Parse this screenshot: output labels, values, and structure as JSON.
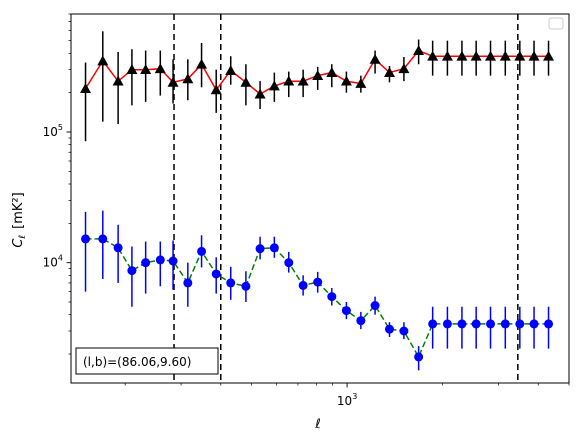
{
  "chart_data": {
    "type": "scatter",
    "xlabel": "ℓ",
    "ylabel": "C",
    "ylabel_subscript": "ℓ",
    "ylabel_unit": "[mK²]",
    "xscale": "log",
    "yscale": "log",
    "xlim": [
      135,
      5000
    ],
    "ylim": [
      1200,
      800000
    ],
    "x_tick_labels": [
      {
        "value": 1000,
        "base": "10",
        "exp": "3"
      }
    ],
    "y_tick_labels": [
      {
        "value": 10000,
        "base": "10",
        "exp": "4"
      },
      {
        "value": 100000,
        "base": "10",
        "exp": "5"
      }
    ],
    "vlines": [
      285,
      400,
      3450
    ],
    "annotation": {
      "label": "(l, b)=(86.06,9.60)",
      "text": "(l,b)=(86.06,9.60)"
    },
    "legend": {
      "placement": "top-right",
      "entries": []
    },
    "series": [
      {
        "marker": "triangle",
        "marker_color": "#000000",
        "line_color": "#ff0000",
        "line_style": "solid",
        "errorbar_color": "#000000",
        "x": [
          150,
          170,
          190,
          210,
          232,
          258,
          283,
          315,
          348,
          387,
          430,
          480,
          532,
          590,
          655,
          727,
          808,
          895,
          995,
          1105,
          1225,
          1360,
          1510,
          1680,
          1860,
          2070,
          2300,
          2550,
          2830,
          3150,
          3500,
          3880,
          4310
        ],
        "y": [
          215000,
          350000,
          245000,
          300000,
          300000,
          305000,
          240000,
          255000,
          330000,
          210000,
          295000,
          240000,
          195000,
          225000,
          245000,
          245000,
          270000,
          285000,
          245000,
          235000,
          360000,
          285000,
          305000,
          420000,
          380000,
          380000,
          380000,
          380000,
          380000,
          380000,
          380000,
          380000,
          380000
        ],
        "yerr_low": [
          85000,
          120000,
          115000,
          160000,
          170000,
          190000,
          165000,
          175000,
          220000,
          140000,
          230000,
          160000,
          150000,
          170000,
          185000,
          185000,
          210000,
          220000,
          200000,
          200000,
          280000,
          240000,
          245000,
          330000,
          270000,
          270000,
          270000,
          270000,
          270000,
          270000,
          270000,
          270000,
          270000
        ],
        "yerr_high": [
          340000,
          590000,
          410000,
          430000,
          420000,
          420000,
          360000,
          360000,
          480000,
          300000,
          380000,
          330000,
          245000,
          285000,
          290000,
          300000,
          315000,
          330000,
          290000,
          270000,
          420000,
          320000,
          375000,
          510000,
          500000,
          500000,
          500000,
          500000,
          500000,
          500000,
          500000,
          500000,
          500000
        ]
      },
      {
        "marker": "circle",
        "marker_color": "#0000ff",
        "line_color": "#008000",
        "line_style": "dashed",
        "errorbar_color": "#0000ff",
        "x": [
          150,
          170,
          190,
          210,
          232,
          258,
          283,
          315,
          348,
          387,
          430,
          480,
          532,
          590,
          655,
          727,
          808,
          895,
          995,
          1105,
          1225,
          1360,
          1510,
          1680,
          1860,
          2070,
          2300,
          2550,
          2830,
          3150,
          3500,
          3880,
          4310
        ],
        "y": [
          15200,
          15200,
          13000,
          8700,
          10000,
          10500,
          10300,
          7000,
          12200,
          8200,
          7000,
          6600,
          12800,
          13000,
          10000,
          6700,
          7100,
          5500,
          4300,
          3600,
          4700,
          3100,
          3000,
          1900,
          3400,
          3400,
          3400,
          3400,
          3400,
          3400,
          3400,
          3400,
          3400
        ],
        "yerr_low": [
          6000,
          7500,
          7000,
          4600,
          5800,
          6600,
          6200,
          4600,
          9200,
          5800,
          5200,
          5000,
          10600,
          10900,
          8400,
          5600,
          5900,
          4700,
          3700,
          3100,
          4000,
          2700,
          2600,
          1500,
          2200,
          2200,
          2200,
          2200,
          2200,
          2200,
          2200,
          2200,
          2200
        ],
        "yerr_high": [
          24500,
          25000,
          19500,
          13300,
          14500,
          14500,
          14800,
          10000,
          16200,
          11000,
          9300,
          8600,
          15800,
          15800,
          12100,
          8000,
          8500,
          6400,
          5000,
          4200,
          5500,
          3500,
          3500,
          2300,
          4600,
          4600,
          4600,
          4600,
          4600,
          4600,
          4600,
          4600,
          4600
        ]
      }
    ]
  }
}
